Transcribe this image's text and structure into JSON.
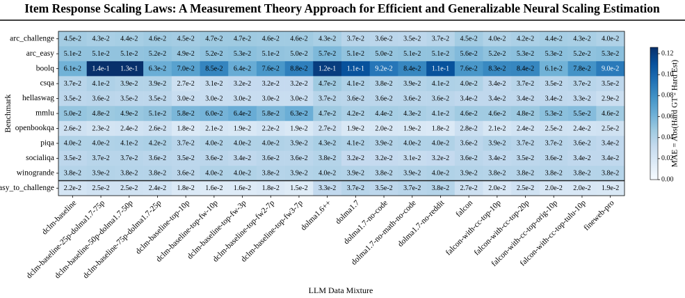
{
  "chart_data": {
    "type": "heatmap",
    "title": "Item Response Scaling Laws: A Measurement Theory Approach for Efficient and Generalizable Neural Scaling Estimation",
    "x_label": "LLM Data Mixture",
    "y_label": "Benchmark",
    "colorbar_label": "MAE = Abs(Hard GT - Hard Est)",
    "colormap": [
      "#f7fbff",
      "#deebf7",
      "#c6dbef",
      "#9ecae1",
      "#6baed6",
      "#4292c6",
      "#2171b5",
      "#08519c",
      "#08306b"
    ],
    "clim": [
      0,
      0.126
    ],
    "cticks": [
      {
        "value": 0,
        "label": "0.00"
      },
      {
        "value": 0.02,
        "label": "0.02"
      },
      {
        "value": 0.04,
        "label": "0.04"
      },
      {
        "value": 0.06,
        "label": "0.06"
      },
      {
        "value": 0.08,
        "label": "0.08"
      },
      {
        "value": 0.1,
        "label": "0.10"
      },
      {
        "value": 0.12,
        "label": "0.12"
      }
    ],
    "categories": [
      "dclm-baseline",
      "dclm-baseline-25p-dolma1.7-75p",
      "dclm-baseline-50p-dolma1.7-50p",
      "dclm-baseline-75p-dolma1.7-25p",
      "dclm-baseline-top-10p",
      "dclm-baseline-top-fw-10p",
      "dclm-baseline-top-fw-3p",
      "dclm-baseline-top-fw2-7p",
      "dclm-baseline-top-fw3-7p",
      "dolma1.6++",
      "dolma1.7",
      "dolma1.7-no-code",
      "dolma1.7-no-math-no-code",
      "dolma1.7-no-reddit",
      "falcon",
      "falcon-with-cc-top-10p",
      "falcon-with-cc-top-20p",
      "falcon-with-cc-top-orig-10p",
      "falcon-with-cc-top-tulu-10p",
      "fineweb-pro"
    ],
    "rows": [
      "arc_challenge",
      "arc_easy",
      "boolq",
      "csqa",
      "hellaswag",
      "mmlu",
      "openbookqa",
      "piqa",
      "socialiqa",
      "winogrande",
      "arc_easy_to_challenge"
    ],
    "values": [
      [
        0.045,
        0.043,
        0.044,
        0.046,
        0.045,
        0.047,
        0.047,
        0.046,
        0.046,
        0.043,
        0.037,
        0.036,
        0.035,
        0.037,
        0.045,
        0.04,
        0.042,
        0.044,
        0.043,
        0.04
      ],
      [
        0.051,
        0.051,
        0.051,
        0.052,
        0.049,
        0.052,
        0.053,
        0.051,
        0.05,
        0.057,
        0.051,
        0.05,
        0.051,
        0.051,
        0.056,
        0.052,
        0.053,
        0.053,
        0.052,
        0.053
      ],
      [
        0.061,
        0.14,
        0.13,
        0.063,
        0.07,
        0.085,
        0.064,
        0.076,
        0.088,
        0.12,
        0.11,
        0.092,
        0.084,
        0.11,
        0.076,
        0.083,
        0.084,
        0.061,
        0.078,
        0.09
      ],
      [
        0.037,
        0.041,
        0.039,
        0.039,
        0.027,
        0.031,
        0.032,
        0.032,
        0.032,
        0.047,
        0.041,
        0.038,
        0.039,
        0.041,
        0.04,
        0.034,
        0.037,
        0.035,
        0.037,
        0.035
      ],
      [
        0.035,
        0.036,
        0.035,
        0.035,
        0.03,
        0.03,
        0.03,
        0.03,
        0.03,
        0.037,
        0.036,
        0.036,
        0.036,
        0.036,
        0.034,
        0.034,
        0.034,
        0.034,
        0.033,
        0.029
      ],
      [
        0.05,
        0.048,
        0.049,
        0.051,
        0.058,
        0.06,
        0.064,
        0.058,
        0.063,
        0.047,
        0.042,
        0.044,
        0.043,
        0.041,
        0.046,
        0.046,
        0.048,
        0.053,
        0.055,
        0.046
      ],
      [
        0.026,
        0.023,
        0.024,
        0.026,
        0.018,
        0.021,
        0.019,
        0.022,
        0.019,
        0.027,
        0.019,
        0.02,
        0.019,
        0.018,
        0.028,
        0.021,
        0.024,
        0.025,
        0.024,
        0.025
      ],
      [
        0.04,
        0.04,
        0.041,
        0.042,
        0.037,
        0.04,
        0.04,
        0.04,
        0.039,
        0.043,
        0.041,
        0.039,
        0.04,
        0.04,
        0.036,
        0.039,
        0.037,
        0.037,
        0.036,
        0.034
      ],
      [
        0.035,
        0.037,
        0.037,
        0.036,
        0.035,
        0.036,
        0.034,
        0.036,
        0.036,
        0.038,
        0.032,
        0.032,
        0.031,
        0.032,
        0.036,
        0.034,
        0.035,
        0.036,
        0.034,
        0.034
      ],
      [
        0.038,
        0.039,
        0.038,
        0.038,
        0.036,
        0.04,
        0.04,
        0.038,
        0.039,
        0.04,
        0.039,
        0.038,
        0.039,
        0.04,
        0.039,
        0.038,
        0.038,
        0.038,
        0.038,
        0.038
      ],
      [
        0.022,
        0.025,
        0.025,
        0.024,
        0.018,
        0.016,
        0.016,
        0.018,
        0.015,
        0.033,
        0.037,
        0.035,
        0.037,
        0.038,
        0.027,
        0.02,
        0.025,
        0.02,
        0.02,
        0.019
      ]
    ],
    "value_labels": [
      [
        "4.5e-2",
        "4.3e-2",
        "4.4e-2",
        "4.6e-2",
        "4.5e-2",
        "4.7e-2",
        "4.7e-2",
        "4.6e-2",
        "4.6e-2",
        "4.3e-2",
        "3.7e-2",
        "3.6e-2",
        "3.5e-2",
        "3.7e-2",
        "4.5e-2",
        "4.0e-2",
        "4.2e-2",
        "4.4e-2",
        "4.3e-2",
        "4.0e-2"
      ],
      [
        "5.1e-2",
        "5.1e-2",
        "5.1e-2",
        "5.2e-2",
        "4.9e-2",
        "5.2e-2",
        "5.3e-2",
        "5.1e-2",
        "5.0e-2",
        "5.7e-2",
        "5.1e-2",
        "5.0e-2",
        "5.1e-2",
        "5.1e-2",
        "5.6e-2",
        "5.2e-2",
        "5.3e-2",
        "5.3e-2",
        "5.2e-2",
        "5.3e-2"
      ],
      [
        "6.1e-2",
        "1.4e-1",
        "1.3e-1",
        "6.3e-2",
        "7.0e-2",
        "8.5e-2",
        "6.4e-2",
        "7.6e-2",
        "8.8e-2",
        "1.2e-1",
        "1.1e-1",
        "9.2e-2",
        "8.4e-2",
        "1.1e-1",
        "7.6e-2",
        "8.3e-2",
        "8.4e-2",
        "6.1e-2",
        "7.8e-2",
        "9.0e-2"
      ],
      [
        "3.7e-2",
        "4.1e-2",
        "3.9e-2",
        "3.9e-2",
        "2.7e-2",
        "3.1e-2",
        "3.2e-2",
        "3.2e-2",
        "3.2e-2",
        "4.7e-2",
        "4.1e-2",
        "3.8e-2",
        "3.9e-2",
        "4.1e-2",
        "4.0e-2",
        "3.4e-2",
        "3.7e-2",
        "3.5e-2",
        "3.7e-2",
        "3.5e-2"
      ],
      [
        "3.5e-2",
        "3.6e-2",
        "3.5e-2",
        "3.5e-2",
        "3.0e-2",
        "3.0e-2",
        "3.0e-2",
        "3.0e-2",
        "3.0e-2",
        "3.7e-2",
        "3.6e-2",
        "3.6e-2",
        "3.6e-2",
        "3.6e-2",
        "3.4e-2",
        "3.4e-2",
        "3.4e-2",
        "3.4e-2",
        "3.3e-2",
        "2.9e-2"
      ],
      [
        "5.0e-2",
        "4.8e-2",
        "4.9e-2",
        "5.1e-2",
        "5.8e-2",
        "6.0e-2",
        "6.4e-2",
        "5.8e-2",
        "6.3e-2",
        "4.7e-2",
        "4.2e-2",
        "4.4e-2",
        "4.3e-2",
        "4.1e-2",
        "4.6e-2",
        "4.6e-2",
        "4.8e-2",
        "5.3e-2",
        "5.5e-2",
        "4.6e-2"
      ],
      [
        "2.6e-2",
        "2.3e-2",
        "2.4e-2",
        "2.6e-2",
        "1.8e-2",
        "2.1e-2",
        "1.9e-2",
        "2.2e-2",
        "1.9e-2",
        "2.7e-2",
        "1.9e-2",
        "2.0e-2",
        "1.9e-2",
        "1.8e-2",
        "2.8e-2",
        "2.1e-2",
        "2.4e-2",
        "2.5e-2",
        "2.4e-2",
        "2.5e-2"
      ],
      [
        "4.0e-2",
        "4.0e-2",
        "4.1e-2",
        "4.2e-2",
        "3.7e-2",
        "4.0e-2",
        "4.0e-2",
        "4.0e-2",
        "3.9e-2",
        "4.3e-2",
        "4.1e-2",
        "3.9e-2",
        "4.0e-2",
        "4.0e-2",
        "3.6e-2",
        "3.9e-2",
        "3.7e-2",
        "3.7e-2",
        "3.6e-2",
        "3.4e-2"
      ],
      [
        "3.5e-2",
        "3.7e-2",
        "3.7e-2",
        "3.6e-2",
        "3.5e-2",
        "3.6e-2",
        "3.4e-2",
        "3.6e-2",
        "3.6e-2",
        "3.8e-2",
        "3.2e-2",
        "3.2e-2",
        "3.1e-2",
        "3.2e-2",
        "3.6e-2",
        "3.4e-2",
        "3.5e-2",
        "3.6e-2",
        "3.4e-2",
        "3.4e-2"
      ],
      [
        "3.8e-2",
        "3.9e-2",
        "3.8e-2",
        "3.8e-2",
        "3.6e-2",
        "4.0e-2",
        "4.0e-2",
        "3.8e-2",
        "3.9e-2",
        "4.0e-2",
        "3.9e-2",
        "3.8e-2",
        "3.9e-2",
        "4.0e-2",
        "3.9e-2",
        "3.8e-2",
        "3.8e-2",
        "3.8e-2",
        "3.8e-2",
        "3.8e-2"
      ],
      [
        "2.2e-2",
        "2.5e-2",
        "2.5e-2",
        "2.4e-2",
        "1.8e-2",
        "1.6e-2",
        "1.6e-2",
        "1.8e-2",
        "1.5e-2",
        "3.3e-2",
        "3.7e-2",
        "3.5e-2",
        "3.7e-2",
        "3.8e-2",
        "2.7e-2",
        "2.0e-2",
        "2.5e-2",
        "2.0e-2",
        "2.0e-2",
        "1.9e-2"
      ]
    ]
  }
}
